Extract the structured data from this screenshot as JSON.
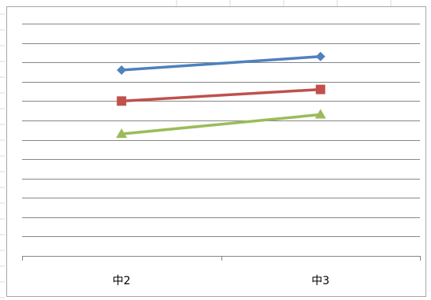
{
  "chart_data": {
    "type": "line",
    "categories": [
      "中2",
      "中3"
    ],
    "ylim": [
      0,
      12
    ],
    "grid": true,
    "series": [
      {
        "color": "#4f81bd",
        "marker": "diamond",
        "values": [
          9.6,
          10.3
        ]
      },
      {
        "color": "#c0504d",
        "marker": "square",
        "values": [
          8.0,
          8.6
        ]
      },
      {
        "color": "#9bbb59",
        "marker": "triangle",
        "values": [
          6.3,
          7.3
        ]
      }
    ]
  }
}
